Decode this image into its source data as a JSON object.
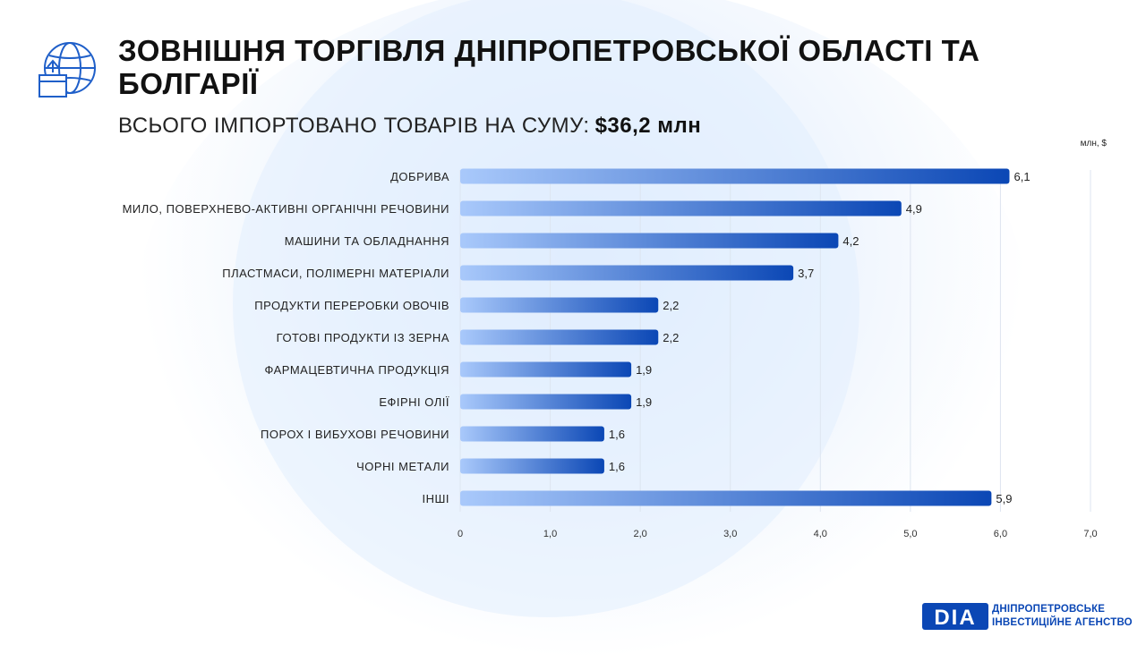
{
  "header": {
    "title": "ЗОВНІШНЯ ТОРГІВЛЯ ДНІПРОПЕТРОВСЬКОЇ ОБЛАСТІ ТА БОЛГАРІЇ",
    "subtitle_prefix": "ВСЬОГО ІМПОРТОВАНО ТОВАРІВ НА СУМУ:",
    "subtitle_amount": "$36,2 млн",
    "icon": "globe-box-export-icon"
  },
  "logo": {
    "mark": "DIA",
    "line1": "ДНІПРОПЕТРОВСЬКЕ",
    "line2": "ІНВЕСТИЦІЙНЕ АГЕНСТВО"
  },
  "colors": {
    "bar_start": "#a9c9fb",
    "bar_end": "#0b47b5",
    "brand": "#0b47b5"
  },
  "chart_data": {
    "type": "bar",
    "orientation": "horizontal",
    "unit_label": "млн, $",
    "categories": [
      "ДОБРИВА",
      "МИЛО, ПОВЕРХНЕВО-АКТИВНІ ОРГАНІЧНІ РЕЧОВИНИ",
      "МАШИНИ ТА ОБЛАДНАННЯ",
      "ПЛАСТМАСИ, ПОЛІМЕРНІ МАТЕРІАЛИ",
      "ПРОДУКТИ ПЕРЕРОБКИ ОВОЧІВ",
      "ГОТОВІ ПРОДУКТИ ІЗ ЗЕРНА",
      "ФАРМАЦЕВТИЧНА ПРОДУКЦІЯ",
      "ЕФІРНІ ОЛІЇ",
      "ПОРОХ І ВИБУХОВІ РЕЧОВИНИ",
      "ЧОРНІ МЕТАЛИ",
      "ІНШІ"
    ],
    "values": [
      6.1,
      4.9,
      4.2,
      3.7,
      2.2,
      2.2,
      1.9,
      1.9,
      1.6,
      1.6,
      5.9
    ],
    "value_labels": [
      "6,1",
      "4,9",
      "4,2",
      "3,7",
      "2,2",
      "2,2",
      "1,9",
      "1,9",
      "1,6",
      "1,6",
      "5,9"
    ],
    "xlim": [
      0,
      7
    ],
    "x_ticks": [
      0,
      1,
      2,
      3,
      4,
      5,
      6,
      7
    ],
    "x_tick_labels": [
      "0",
      "1,0",
      "2,0",
      "3,0",
      "4,0",
      "5,0",
      "6,0",
      "7,0"
    ],
    "grid": "vertical",
    "legend": "none"
  }
}
